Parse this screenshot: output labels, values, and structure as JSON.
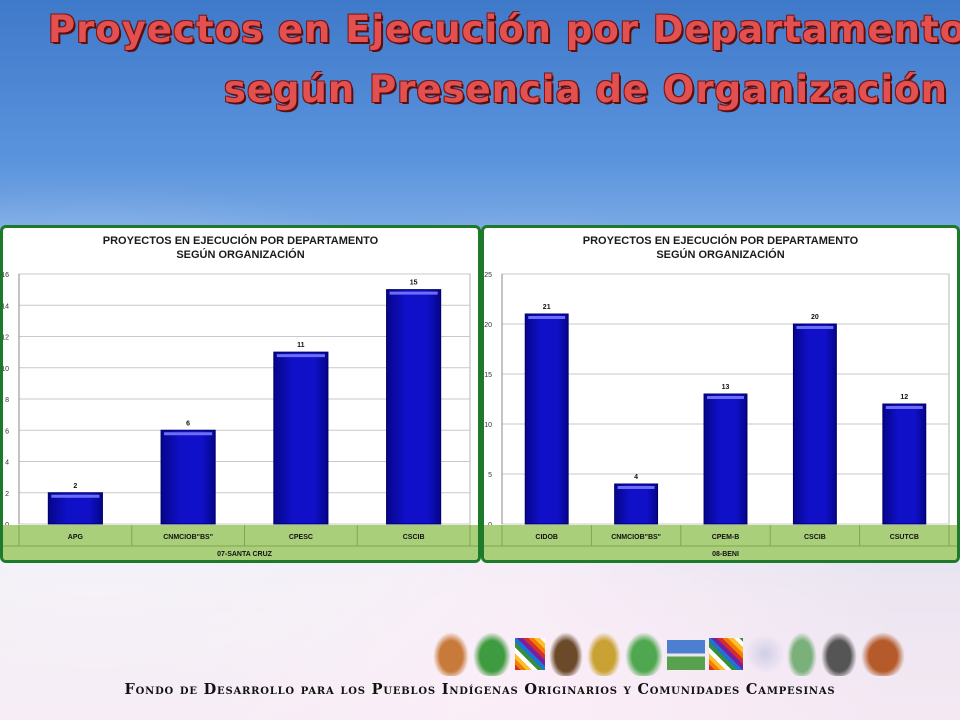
{
  "slide": {
    "title_line1": "Proyectos en Ejecución por Departamento",
    "title_line2": "según Presencia de Organización",
    "footer": "Fondo de Desarrollo para los Pueblos Indígenas Originarios y Comunidades Campesinas",
    "logos": [
      "indigenous-figure-logo",
      "bolivia-map-logo",
      "wiphala-flag-logo",
      "crossed-arrows-logo",
      "cidob-emblem-logo",
      "bolivia-map-green-logo",
      "mountain-landscape-logo",
      "wiphala-flag-logo-2",
      "apg-logo",
      "cnmciob-logo",
      "bow-arrow-logo",
      "clay-pot-logo"
    ],
    "colors": {
      "bar": "#1010c8",
      "bar_edge": "#000066",
      "plot_bg": "#ffffff",
      "panel_border": "#1d7a2a",
      "axis_band": "#a9cf7a"
    }
  },
  "chart_data": [
    {
      "type": "bar",
      "title": "PROYECTOS EN EJECUCIÓN POR DEPARTAMENTO SEGÚN ORGANIZACIÓN",
      "categories": [
        "APG",
        "CNMCIOB\"BS\"",
        "CPESC",
        "CSCIB"
      ],
      "group_label": "07-SANTA CRUZ",
      "values": [
        2,
        6,
        11,
        15
      ],
      "ylim": [
        0,
        16
      ],
      "yticks": [
        0,
        2,
        4,
        6,
        8,
        10,
        12,
        14,
        16
      ],
      "grid": true,
      "data_labels": true
    },
    {
      "type": "bar",
      "title": "PROYECTOS EN EJECUCIÓN POR DEPARTAMENTO SEGÚN ORGANIZACIÓN",
      "categories": [
        "CIDOB",
        "CNMCIOB\"BS\"",
        "CPEM-B",
        "CSCIB",
        "CSUTCB"
      ],
      "group_label": "08-BENI",
      "values": [
        21,
        4,
        13,
        20,
        12
      ],
      "ylim": [
        0,
        25
      ],
      "yticks": [
        0,
        5,
        10,
        15,
        20,
        25
      ],
      "grid": true,
      "data_labels": true
    }
  ]
}
